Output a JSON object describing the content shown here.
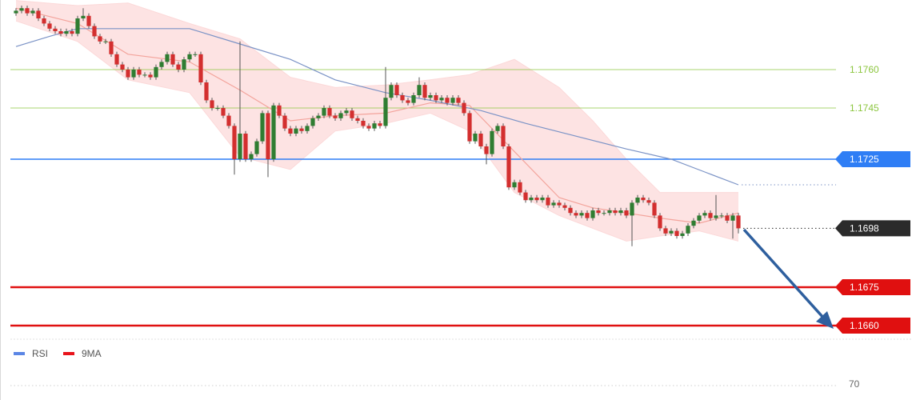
{
  "chart_data": {
    "type": "candlestick",
    "ylim": [
      1.1655,
      1.1787
    ],
    "up_color": "#2f7d32",
    "down_color": "#d32f2f",
    "open": [
      1.1782,
      1.1783,
      1.1784,
      1.1782,
      1.1783,
      1.178,
      1.1778,
      1.1776,
      1.1775,
      1.1774,
      1.1775,
      1.1774,
      1.178,
      1.1781,
      1.1777,
      1.1773,
      1.1771,
      1.1771,
      1.1766,
      1.1762,
      1.176,
      1.1757,
      1.176,
      1.1758,
      1.1758,
      1.1757,
      1.1761,
      1.1763,
      1.1766,
      1.1762,
      1.176,
      1.1764,
      1.1766,
      1.1766,
      1.1755,
      1.1748,
      1.1745,
      1.1745,
      1.1742,
      1.1738,
      1.1725,
      1.1735,
      1.1725,
      1.1727,
      1.1732,
      1.1743,
      1.1725,
      1.1746,
      1.1742,
      1.1737,
      1.1735,
      1.1737,
      1.1736,
      1.1738,
      1.1741,
      1.1742,
      1.1745,
      1.1742,
      1.1741,
      1.1743,
      1.1744,
      1.1741,
      1.174,
      1.1738,
      1.1737,
      1.1739,
      1.1738,
      1.1749,
      1.1754,
      1.175,
      1.1748,
      1.1747,
      1.175,
      1.1754,
      1.1749,
      1.175,
      1.1748,
      1.1749,
      1.1747,
      1.1749,
      1.1747,
      1.1743,
      1.1732,
      1.1735,
      1.173,
      1.1727,
      1.1736,
      1.1738,
      1.173,
      1.1714,
      1.1716,
      1.1712,
      1.1709,
      1.171,
      1.1709,
      1.171,
      1.1707,
      1.1708,
      1.1707,
      1.1706,
      1.1704,
      1.1703,
      1.1704,
      1.1702,
      1.1705,
      1.1704,
      1.1704,
      1.1705,
      1.1704,
      1.1705,
      1.1703,
      1.1708,
      1.171,
      1.1709,
      1.1708,
      1.1703,
      1.1698,
      1.1696,
      1.1697,
      1.1695,
      1.1696,
      1.1699,
      1.1701,
      1.1703,
      1.1704,
      1.1702,
      1.1703,
      1.1703,
      1.1701,
      1.1703
    ],
    "high": [
      1.1784,
      1.1785,
      1.1785,
      1.1784,
      1.1784,
      1.1781,
      1.1779,
      1.1777,
      1.1776,
      1.1776,
      1.1776,
      1.1781,
      1.1784,
      1.1782,
      1.1778,
      1.1774,
      1.1772,
      1.1772,
      1.1767,
      1.1763,
      1.1761,
      1.1761,
      1.1761,
      1.1759,
      1.1759,
      1.1762,
      1.1764,
      1.1767,
      1.1767,
      1.1763,
      1.1765,
      1.1767,
      1.1767,
      1.1767,
      1.1756,
      1.1749,
      1.1746,
      1.1746,
      1.1743,
      1.1739,
      1.1771,
      1.1736,
      1.1728,
      1.1733,
      1.1744,
      1.1744,
      1.1747,
      1.1747,
      1.1743,
      1.1738,
      1.1738,
      1.1738,
      1.1739,
      1.1742,
      1.1743,
      1.1746,
      1.1746,
      1.1743,
      1.1744,
      1.1745,
      1.1745,
      1.1742,
      1.1741,
      1.1739,
      1.174,
      1.174,
      1.1761,
      1.1755,
      1.1755,
      1.1751,
      1.1749,
      1.1751,
      1.1757,
      1.1755,
      1.1751,
      1.1751,
      1.175,
      1.175,
      1.175,
      1.175,
      1.1748,
      1.1744,
      1.1736,
      1.1736,
      1.1731,
      1.1737,
      1.1739,
      1.1739,
      1.1731,
      1.1717,
      1.1717,
      1.1713,
      1.1711,
      1.1711,
      1.1711,
      1.1711,
      1.1709,
      1.1709,
      1.1708,
      1.1707,
      1.1705,
      1.1705,
      1.1705,
      1.1706,
      1.1706,
      1.1705,
      1.1706,
      1.1706,
      1.1706,
      1.1706,
      1.1709,
      1.1711,
      1.1711,
      1.171,
      1.1709,
      1.1704,
      1.1699,
      1.1698,
      1.1698,
      1.1697,
      1.17,
      1.1702,
      1.1704,
      1.1705,
      1.1705,
      1.1711,
      1.1704,
      1.1704,
      1.1704,
      1.1704
    ],
    "low": [
      1.1781,
      1.1782,
      1.1781,
      1.1781,
      1.1779,
      1.1777,
      1.1775,
      1.1774,
      1.1773,
      1.1773,
      1.1773,
      1.1773,
      1.1779,
      1.1776,
      1.1772,
      1.177,
      1.177,
      1.1765,
      1.1761,
      1.1759,
      1.1756,
      1.1756,
      1.1757,
      1.1757,
      1.1756,
      1.1756,
      1.176,
      1.1762,
      1.1761,
      1.1759,
      1.1759,
      1.1763,
      1.1765,
      1.1754,
      1.1747,
      1.1744,
      1.1744,
      1.1741,
      1.1737,
      1.1719,
      1.1724,
      1.1724,
      1.1724,
      1.1726,
      1.1731,
      1.1718,
      1.1724,
      1.1741,
      1.1736,
      1.1734,
      1.1734,
      1.1735,
      1.1735,
      1.1737,
      1.174,
      1.1741,
      1.1741,
      1.174,
      1.174,
      1.1742,
      1.174,
      1.1739,
      1.1737,
      1.1736,
      1.1736,
      1.1737,
      1.1737,
      1.1748,
      1.1749,
      1.1747,
      1.1746,
      1.1746,
      1.1749,
      1.1748,
      1.1748,
      1.1747,
      1.1747,
      1.1746,
      1.1746,
      1.1746,
      1.1742,
      1.1731,
      1.1731,
      1.1729,
      1.1723,
      1.1726,
      1.1735,
      1.1729,
      1.1713,
      1.1713,
      1.1711,
      1.1708,
      1.1708,
      1.1708,
      1.1708,
      1.1706,
      1.1706,
      1.1706,
      1.1705,
      1.1703,
      1.1702,
      1.1702,
      1.1701,
      1.1701,
      1.1703,
      1.1703,
      1.1703,
      1.1703,
      1.1703,
      1.1702,
      1.1691,
      1.1707,
      1.1708,
      1.1707,
      1.1702,
      1.1697,
      1.1695,
      1.1695,
      1.1694,
      1.1694,
      1.1695,
      1.1698,
      1.17,
      1.1702,
      1.1701,
      1.1701,
      1.1702,
      1.17,
      1.1694,
      1.1696
    ],
    "close": [
      1.1783,
      1.1784,
      1.1782,
      1.1783,
      1.178,
      1.1778,
      1.1776,
      1.1775,
      1.1774,
      1.1775,
      1.1774,
      1.178,
      1.1781,
      1.1777,
      1.1773,
      1.1771,
      1.1771,
      1.1766,
      1.1762,
      1.176,
      1.1757,
      1.176,
      1.1758,
      1.1758,
      1.1757,
      1.1761,
      1.1763,
      1.1766,
      1.1762,
      1.176,
      1.1764,
      1.1766,
      1.1766,
      1.1755,
      1.1748,
      1.1745,
      1.1745,
      1.1742,
      1.1738,
      1.1725,
      1.1735,
      1.1725,
      1.1727,
      1.1732,
      1.1743,
      1.1725,
      1.1746,
      1.1742,
      1.1737,
      1.1735,
      1.1737,
      1.1736,
      1.1738,
      1.1741,
      1.1742,
      1.1745,
      1.1742,
      1.1741,
      1.1743,
      1.1744,
      1.1741,
      1.174,
      1.1738,
      1.1737,
      1.1739,
      1.1738,
      1.1749,
      1.1754,
      1.175,
      1.1748,
      1.1747,
      1.175,
      1.1754,
      1.1749,
      1.175,
      1.1748,
      1.1749,
      1.1747,
      1.1749,
      1.1747,
      1.1743,
      1.1732,
      1.1735,
      1.173,
      1.1727,
      1.1736,
      1.1738,
      1.173,
      1.1714,
      1.1716,
      1.1712,
      1.1709,
      1.171,
      1.1709,
      1.171,
      1.1707,
      1.1708,
      1.1707,
      1.1706,
      1.1704,
      1.1703,
      1.1704,
      1.1702,
      1.1705,
      1.1704,
      1.1704,
      1.1705,
      1.1704,
      1.1705,
      1.1703,
      1.1708,
      1.171,
      1.1709,
      1.1708,
      1.1703,
      1.1698,
      1.1696,
      1.1697,
      1.1695,
      1.1696,
      1.1699,
      1.1701,
      1.1703,
      1.1704,
      1.1702,
      1.1703,
      1.1703,
      1.1701,
      1.1703,
      1.1698
    ],
    "overlays": [
      {
        "kind": "band",
        "color": "#fcd9d9",
        "x": [
          0,
          11,
          20,
          31,
          40,
          49,
          57,
          66,
          74,
          81,
          89,
          97,
          103,
          109,
          115,
          122,
          129
        ],
        "upper": [
          1.1787,
          1.1785,
          1.1786,
          1.1778,
          1.1772,
          1.1757,
          1.1753,
          1.1754,
          1.1756,
          1.1758,
          1.1764,
          1.1753,
          1.174,
          1.1725,
          1.1712,
          1.1712,
          1.1712
        ],
        "lower": [
          1.1779,
          1.1771,
          1.1756,
          1.1751,
          1.1726,
          1.1721,
          1.1736,
          1.1739,
          1.1743,
          1.1736,
          1.1712,
          1.1703,
          1.1698,
          1.1693,
          1.1695,
          1.1697,
          1.1693
        ]
      },
      {
        "kind": "line",
        "color": "#f3a49c",
        "x": [
          0,
          11,
          20,
          31,
          40,
          49,
          57,
          66,
          74,
          81,
          89,
          97,
          103,
          109,
          115,
          122,
          129
        ],
        "values": [
          1.1784,
          1.1778,
          1.1766,
          1.1763,
          1.1752,
          1.174,
          1.1742,
          1.1743,
          1.1747,
          1.1746,
          1.1728,
          1.171,
          1.1706,
          1.1704,
          1.1702,
          1.17,
          1.1704
        ]
      },
      {
        "kind": "line",
        "color": "#7b93c6",
        "extend": "dotted",
        "x": [
          0,
          6,
          11,
          19,
          31,
          40,
          49,
          57,
          66,
          74,
          83,
          91,
          100,
          109,
          117,
          123,
          129
        ],
        "values": [
          1.1769,
          1.1773,
          1.1776,
          1.1776,
          1.1776,
          1.177,
          1.1764,
          1.1756,
          1.1751,
          1.1748,
          1.1744,
          1.1739,
          1.1734,
          1.1729,
          1.1725,
          1.172,
          1.1715
        ]
      }
    ],
    "levels": [
      {
        "value": 1.176,
        "label": "1.1760",
        "color": "#8cc63f",
        "style": "plain",
        "line": "thin"
      },
      {
        "value": 1.1745,
        "label": "1.1745",
        "color": "#8cc63f",
        "style": "plain",
        "line": "thin"
      },
      {
        "value": 1.1725,
        "label": "1.1725",
        "color": "#2f7ef5",
        "style": "box",
        "line": "solid"
      },
      {
        "value": 1.1698,
        "label": "1.1698",
        "color": "#2b2b2b",
        "style": "box",
        "line": "dotted"
      },
      {
        "value": 1.1675,
        "label": "1.1675",
        "color": "#e01010",
        "style": "box",
        "line": "thick"
      },
      {
        "value": 1.166,
        "label": "1.1660",
        "color": "#e01010",
        "style": "box",
        "line": "thick"
      }
    ],
    "legend": [
      {
        "name": "RSI",
        "color": "#5b86e5"
      },
      {
        "name": "9MA",
        "color": "#e8141b"
      }
    ],
    "rsi_yticks": [
      70
    ]
  }
}
